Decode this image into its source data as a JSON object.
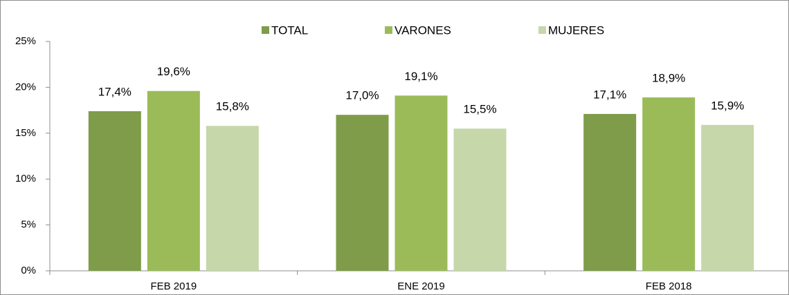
{
  "chart_data": {
    "type": "bar",
    "categories": [
      "FEB 2019",
      "ENE 2019",
      "FEB 2018"
    ],
    "series": [
      {
        "name": "TOTAL",
        "color": "#7f9c4a",
        "values": [
          17.4,
          17.0,
          17.1
        ],
        "value_labels": [
          "17,4%",
          "17,0%",
          "17,1%"
        ]
      },
      {
        "name": "VARONES",
        "color": "#9bbb59",
        "values": [
          19.6,
          19.1,
          18.9
        ],
        "value_labels": [
          "19,6%",
          "19,1%",
          "18,9%"
        ]
      },
      {
        "name": "MUJERES",
        "color": "#c6d7a9",
        "values": [
          15.8,
          15.5,
          15.9
        ],
        "value_labels": [
          "15,8%",
          "15,5%",
          "15,9%"
        ]
      }
    ],
    "ylim": [
      0,
      25
    ],
    "yticks": [
      {
        "value": 0,
        "label": "0%"
      },
      {
        "value": 5,
        "label": "5%"
      },
      {
        "value": 10,
        "label": "10%"
      },
      {
        "value": 15,
        "label": "15%"
      },
      {
        "value": 20,
        "label": "20%"
      },
      {
        "value": 25,
        "label": "25%"
      }
    ],
    "grid": false,
    "legend": "top"
  }
}
